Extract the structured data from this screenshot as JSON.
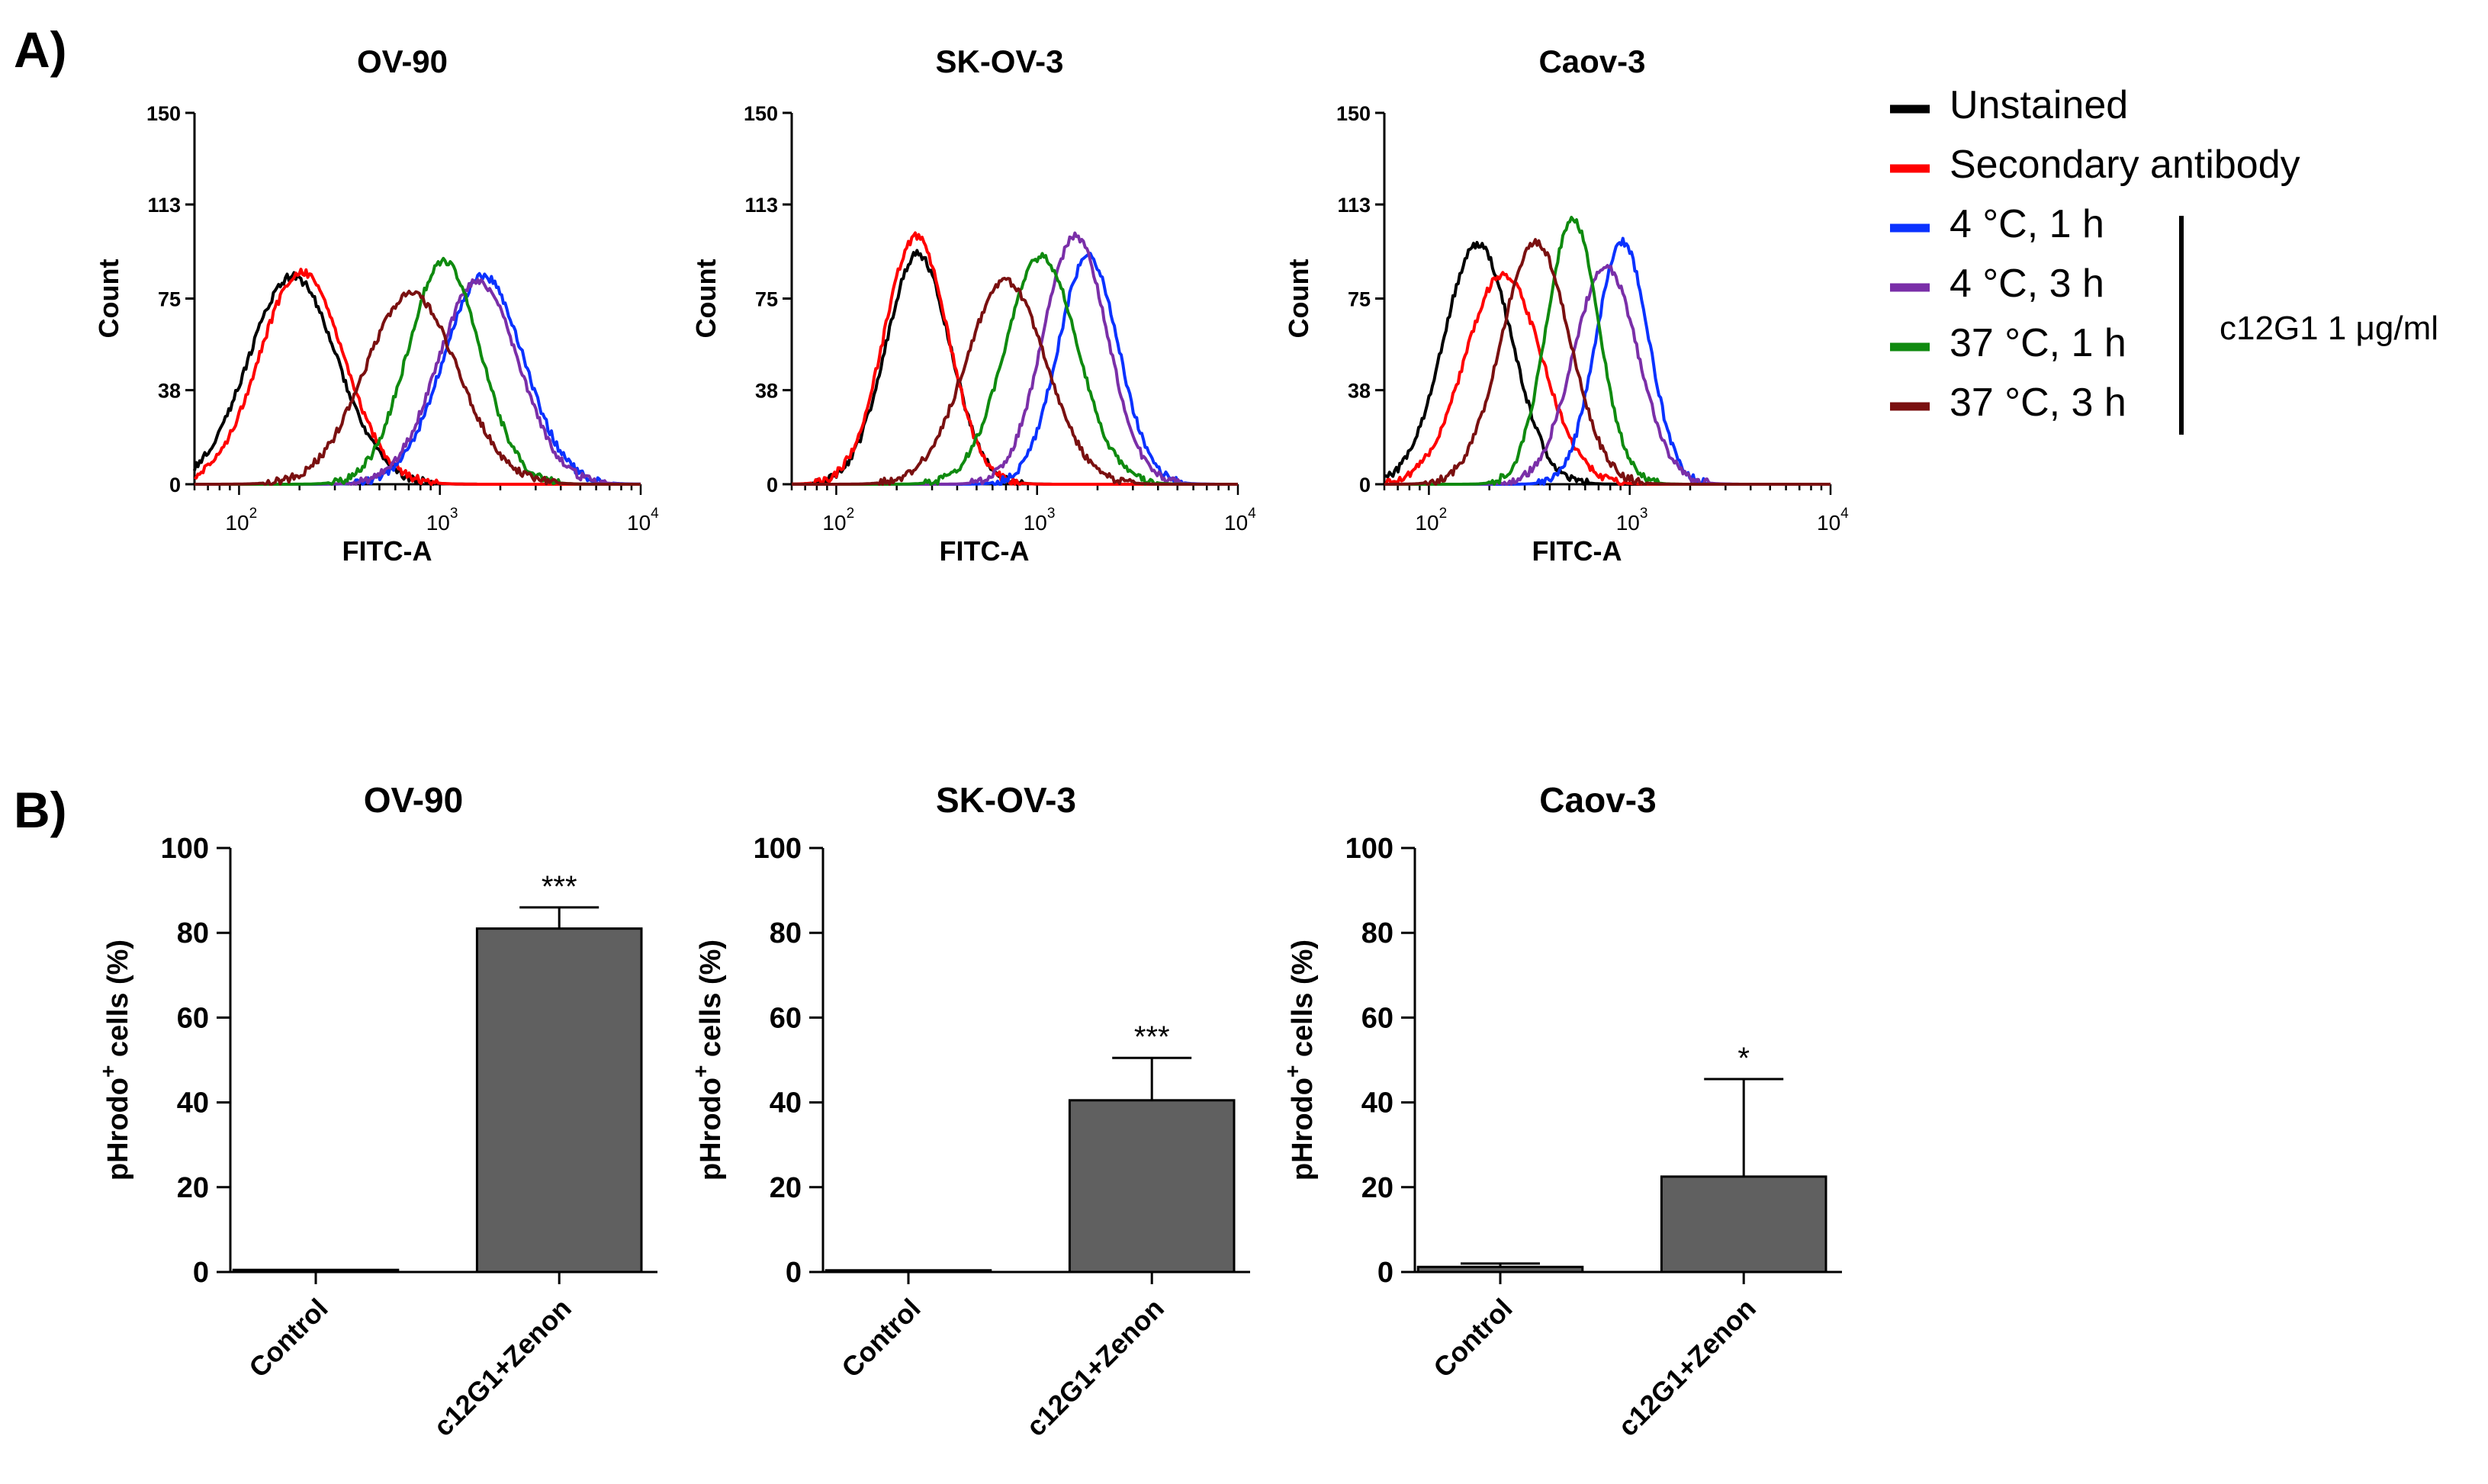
{
  "panel_labels": {
    "a": "A)",
    "b": "B)"
  },
  "legend": {
    "items": [
      {
        "label": "Unstained",
        "color": "#000000"
      },
      {
        "label": "Secondary antibody",
        "color": "#ff0000"
      },
      {
        "label": "4 °C, 1 h",
        "color": "#0a32ff"
      },
      {
        "label": "4 °C, 3 h",
        "color": "#7a2fa8"
      },
      {
        "label": "37 °C, 1 h",
        "color": "#0f8a0f"
      },
      {
        "label": "37 °C, 3 h",
        "color": "#7a1010"
      }
    ],
    "bracket_label": "c12G1 1 μg/ml"
  },
  "bar_color": "#606060",
  "chart_data": [
    {
      "type": "line",
      "title": "OV-90",
      "xlabel": "FITC-A",
      "ylabel": "Count",
      "x_scale": "log",
      "xlim": [
        60,
        10000
      ],
      "ylim": [
        0,
        150
      ],
      "y_ticks": [
        "0",
        "38",
        "75",
        "113",
        "150"
      ],
      "x_ticks": [
        {
          "base": "10",
          "exp": "2",
          "value": 100
        },
        {
          "base": "10",
          "exp": "3",
          "value": 1000
        },
        {
          "base": "10",
          "exp": "4",
          "value": 10000
        }
      ],
      "series": [
        {
          "name": "Unstained",
          "peak_x": 185,
          "peak_y": 84,
          "width": 0.22
        },
        {
          "name": "Secondary antibody",
          "peak_x": 205,
          "peak_y": 86,
          "width": 0.21
        },
        {
          "name": "4 °C, 1 h",
          "peak_x": 1650,
          "peak_y": 84,
          "width": 0.2
        },
        {
          "name": "4 °C, 3 h",
          "peak_x": 1550,
          "peak_y": 82,
          "width": 0.2
        },
        {
          "name": "37 °C, 1 h",
          "peak_x": 1050,
          "peak_y": 90,
          "width": 0.18
        },
        {
          "name": "37 °C, 3 h",
          "peak_x": 720,
          "peak_y": 77,
          "width": 0.23
        }
      ]
    },
    {
      "type": "line",
      "title": "SK-OV-3",
      "xlabel": "FITC-A",
      "ylabel": "Count",
      "x_scale": "log",
      "xlim": [
        60,
        10000
      ],
      "ylim": [
        0,
        150
      ],
      "y_ticks": [
        "0",
        "38",
        "75",
        "113",
        "150"
      ],
      "x_ticks": [
        {
          "base": "10",
          "exp": "2",
          "value": 100
        },
        {
          "base": "10",
          "exp": "3",
          "value": 1000
        },
        {
          "base": "10",
          "exp": "4",
          "value": 10000
        }
      ],
      "series": [
        {
          "name": "Unstained",
          "peak_x": 255,
          "peak_y": 93,
          "width": 0.16
        },
        {
          "name": "Secondary antibody",
          "peak_x": 250,
          "peak_y": 100,
          "width": 0.16
        },
        {
          "name": "4 °C, 1 h",
          "peak_x": 1800,
          "peak_y": 92,
          "width": 0.15
        },
        {
          "name": "4 °C, 3 h",
          "peak_x": 1550,
          "peak_y": 100,
          "width": 0.16
        },
        {
          "name": "37 °C, 1 h",
          "peak_x": 1050,
          "peak_y": 92,
          "width": 0.18
        },
        {
          "name": "37 °C, 3 h",
          "peak_x": 700,
          "peak_y": 82,
          "width": 0.2
        }
      ]
    },
    {
      "type": "line",
      "title": "Caov-3",
      "xlabel": "FITC-A",
      "ylabel": "Count",
      "x_scale": "log",
      "xlim": [
        60,
        10000
      ],
      "ylim": [
        0,
        150
      ],
      "y_ticks": [
        "0",
        "38",
        "75",
        "113",
        "150"
      ],
      "x_ticks": [
        {
          "base": "10",
          "exp": "2",
          "value": 100
        },
        {
          "base": "10",
          "exp": "3",
          "value": 1000
        },
        {
          "base": "10",
          "exp": "4",
          "value": 10000
        }
      ],
      "series": [
        {
          "name": "Unstained",
          "peak_x": 175,
          "peak_y": 97,
          "width": 0.17
        },
        {
          "name": "Secondary antibody",
          "peak_x": 235,
          "peak_y": 85,
          "width": 0.19
        },
        {
          "name": "4 °C, 1 h",
          "peak_x": 920,
          "peak_y": 98,
          "width": 0.13
        },
        {
          "name": "4 °C, 3 h",
          "peak_x": 760,
          "peak_y": 88,
          "width": 0.16
        },
        {
          "name": "37 °C, 1 h",
          "peak_x": 520,
          "peak_y": 107,
          "width": 0.13
        },
        {
          "name": "37 °C, 3 h",
          "peak_x": 340,
          "peak_y": 98,
          "width": 0.17
        }
      ]
    },
    {
      "type": "bar",
      "title": "OV-90",
      "ylabel_main": "pHrodo",
      "ylabel_sup": "+",
      "ylabel_rest": " cells  (%)",
      "categories": [
        "Control",
        "c12G1+Zenon"
      ],
      "values": [
        0.5,
        81
      ],
      "errors": [
        0,
        5
      ],
      "significance": [
        "",
        "***"
      ],
      "ylim": [
        0,
        100
      ],
      "y_ticks": [
        "0",
        "20",
        "40",
        "60",
        "80",
        "100"
      ]
    },
    {
      "type": "bar",
      "title": "SK-OV-3",
      "ylabel_main": "pHrodo",
      "ylabel_sup": "+",
      "ylabel_rest": " cells  (%)",
      "categories": [
        "Control",
        "c12G1+Zenon"
      ],
      "values": [
        0.4,
        40.5
      ],
      "errors": [
        0,
        10
      ],
      "significance": [
        "",
        "***"
      ],
      "ylim": [
        0,
        100
      ],
      "y_ticks": [
        "0",
        "20",
        "40",
        "60",
        "80",
        "100"
      ]
    },
    {
      "type": "bar",
      "title": "Caov-3",
      "ylabel_main": "pHrodo",
      "ylabel_sup": "+",
      "ylabel_rest": " cells  (%)",
      "categories": [
        "Control",
        "c12G1+Zenon"
      ],
      "values": [
        1.2,
        22.5
      ],
      "errors": [
        0.8,
        23
      ],
      "significance": [
        "",
        "*"
      ],
      "ylim": [
        0,
        100
      ],
      "y_ticks": [
        "0",
        "20",
        "40",
        "60",
        "80",
        "100"
      ]
    }
  ]
}
